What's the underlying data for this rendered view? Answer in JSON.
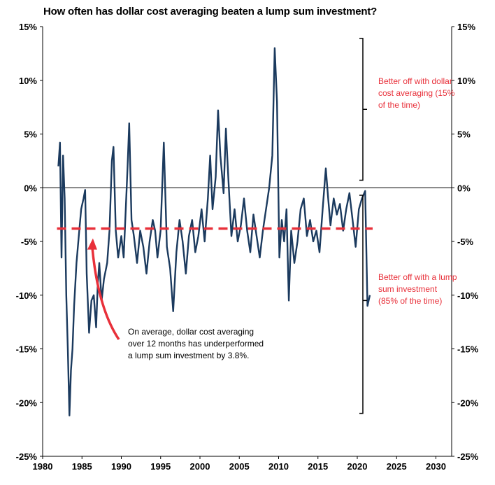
{
  "chart_data": {
    "type": "line",
    "title": "How often has dollar cost averaging beaten a lump sum investment?",
    "xlim": [
      1980,
      2032
    ],
    "ylim": [
      -25,
      15
    ],
    "x_ticks": [
      "1980",
      "1985",
      "1990",
      "1995",
      "2000",
      "2005",
      "2010",
      "2015",
      "2020",
      "2025",
      "2030"
    ],
    "y_ticks_left": [
      "15%",
      "10%",
      "5%",
      "0%",
      "-5%",
      "-10%",
      "-15%",
      "-20%",
      "-25%"
    ],
    "y_ticks_right": [
      "15%",
      "10%",
      "5%",
      "0%",
      "-5%",
      "-10%",
      "-15%",
      "-20%",
      "-25%"
    ],
    "series": [
      {
        "color": "#1b3a5e",
        "points": [
          [
            1982.0,
            2.0
          ],
          [
            1982.2,
            4.2
          ],
          [
            1982.4,
            -6.5
          ],
          [
            1982.6,
            3.0
          ],
          [
            1982.8,
            -1.0
          ],
          [
            1983.0,
            -10.0
          ],
          [
            1983.2,
            -15.0
          ],
          [
            1983.4,
            -21.2
          ],
          [
            1983.6,
            -17.0
          ],
          [
            1983.8,
            -15.0
          ],
          [
            1984.0,
            -11.0
          ],
          [
            1984.3,
            -7.0
          ],
          [
            1984.6,
            -4.5
          ],
          [
            1984.9,
            -2.0
          ],
          [
            1985.2,
            -1.0
          ],
          [
            1985.4,
            -0.2
          ],
          [
            1985.6,
            -8.0
          ],
          [
            1985.9,
            -13.5
          ],
          [
            1986.2,
            -10.5
          ],
          [
            1986.5,
            -10.0
          ],
          [
            1986.8,
            -13.0
          ],
          [
            1987.0,
            -9.0
          ],
          [
            1987.2,
            -7.0
          ],
          [
            1987.5,
            -10.5
          ],
          [
            1987.8,
            -8.5
          ],
          [
            1988.2,
            -7.0
          ],
          [
            1988.5,
            -4.0
          ],
          [
            1988.8,
            2.5
          ],
          [
            1989.0,
            3.8
          ],
          [
            1989.3,
            -4.0
          ],
          [
            1989.6,
            -6.5
          ],
          [
            1990.0,
            -4.5
          ],
          [
            1990.3,
            -6.5
          ],
          [
            1990.6,
            -1.5
          ],
          [
            1990.8,
            2.0
          ],
          [
            1991.0,
            6.0
          ],
          [
            1991.3,
            -3.0
          ],
          [
            1991.6,
            -4.5
          ],
          [
            1992.0,
            -7.0
          ],
          [
            1992.4,
            -4.0
          ],
          [
            1992.8,
            -5.5
          ],
          [
            1993.2,
            -8.0
          ],
          [
            1993.6,
            -5.0
          ],
          [
            1994.0,
            -3.0
          ],
          [
            1994.3,
            -4.0
          ],
          [
            1994.6,
            -6.5
          ],
          [
            1995.0,
            -4.0
          ],
          [
            1995.4,
            4.2
          ],
          [
            1995.8,
            -5.5
          ],
          [
            1996.2,
            -7.5
          ],
          [
            1996.6,
            -11.5
          ],
          [
            1997.0,
            -6.0
          ],
          [
            1997.4,
            -3.0
          ],
          [
            1997.8,
            -5.0
          ],
          [
            1998.2,
            -8.0
          ],
          [
            1998.6,
            -4.5
          ],
          [
            1999.0,
            -3.0
          ],
          [
            1999.4,
            -6.0
          ],
          [
            1999.8,
            -4.5
          ],
          [
            2000.2,
            -2.0
          ],
          [
            2000.6,
            -5.0
          ],
          [
            2001.0,
            -1.0
          ],
          [
            2001.3,
            3.0
          ],
          [
            2001.6,
            -2.0
          ],
          [
            2002.0,
            1.0
          ],
          [
            2002.3,
            7.2
          ],
          [
            2002.6,
            3.0
          ],
          [
            2003.0,
            -0.5
          ],
          [
            2003.3,
            5.5
          ],
          [
            2003.6,
            1.0
          ],
          [
            2004.0,
            -4.5
          ],
          [
            2004.4,
            -2.0
          ],
          [
            2004.8,
            -5.0
          ],
          [
            2005.2,
            -3.5
          ],
          [
            2005.6,
            -1.0
          ],
          [
            2006.0,
            -4.0
          ],
          [
            2006.4,
            -6.0
          ],
          [
            2006.8,
            -2.5
          ],
          [
            2007.2,
            -4.5
          ],
          [
            2007.6,
            -6.5
          ],
          [
            2008.0,
            -4.0
          ],
          [
            2008.4,
            -2.0
          ],
          [
            2008.8,
            0.0
          ],
          [
            2009.2,
            3.0
          ],
          [
            2009.5,
            13.0
          ],
          [
            2009.8,
            8.0
          ],
          [
            2010.1,
            -6.5
          ],
          [
            2010.4,
            -3.0
          ],
          [
            2010.7,
            -5.0
          ],
          [
            2011.0,
            -2.0
          ],
          [
            2011.3,
            -10.5
          ],
          [
            2011.6,
            -4.0
          ],
          [
            2012.0,
            -7.0
          ],
          [
            2012.4,
            -5.0
          ],
          [
            2012.8,
            -2.0
          ],
          [
            2013.2,
            -1.0
          ],
          [
            2013.6,
            -4.5
          ],
          [
            2014.0,
            -3.0
          ],
          [
            2014.4,
            -5.0
          ],
          [
            2014.8,
            -4.0
          ],
          [
            2015.2,
            -6.0
          ],
          [
            2015.6,
            -2.0
          ],
          [
            2016.0,
            1.8
          ],
          [
            2016.3,
            -1.0
          ],
          [
            2016.6,
            -3.5
          ],
          [
            2017.0,
            -1.0
          ],
          [
            2017.4,
            -2.5
          ],
          [
            2017.8,
            -1.5
          ],
          [
            2018.2,
            -4.0
          ],
          [
            2018.6,
            -2.0
          ],
          [
            2019.0,
            -0.5
          ],
          [
            2019.4,
            -3.0
          ],
          [
            2019.8,
            -5.5
          ],
          [
            2020.2,
            -2.0
          ],
          [
            2020.6,
            -1.0
          ],
          [
            2021.0,
            -0.3
          ],
          [
            2021.3,
            -11.0
          ],
          [
            2021.6,
            -10.0
          ]
        ]
      }
    ],
    "average_line": {
      "value": -3.8,
      "color": "#e8303a",
      "style": "dashed",
      "x_range": [
        1982,
        2021.6
      ]
    },
    "annotations": {
      "upper": "Better off with dollar cost averaging (15% of the time)",
      "lower": "Better off with a lump sum investment (85% of the time)",
      "average": "On average, dollar cost averaging over 12 months has underperformed a lump sum investment by 3.8%."
    },
    "grid": false,
    "zero_line": true
  }
}
